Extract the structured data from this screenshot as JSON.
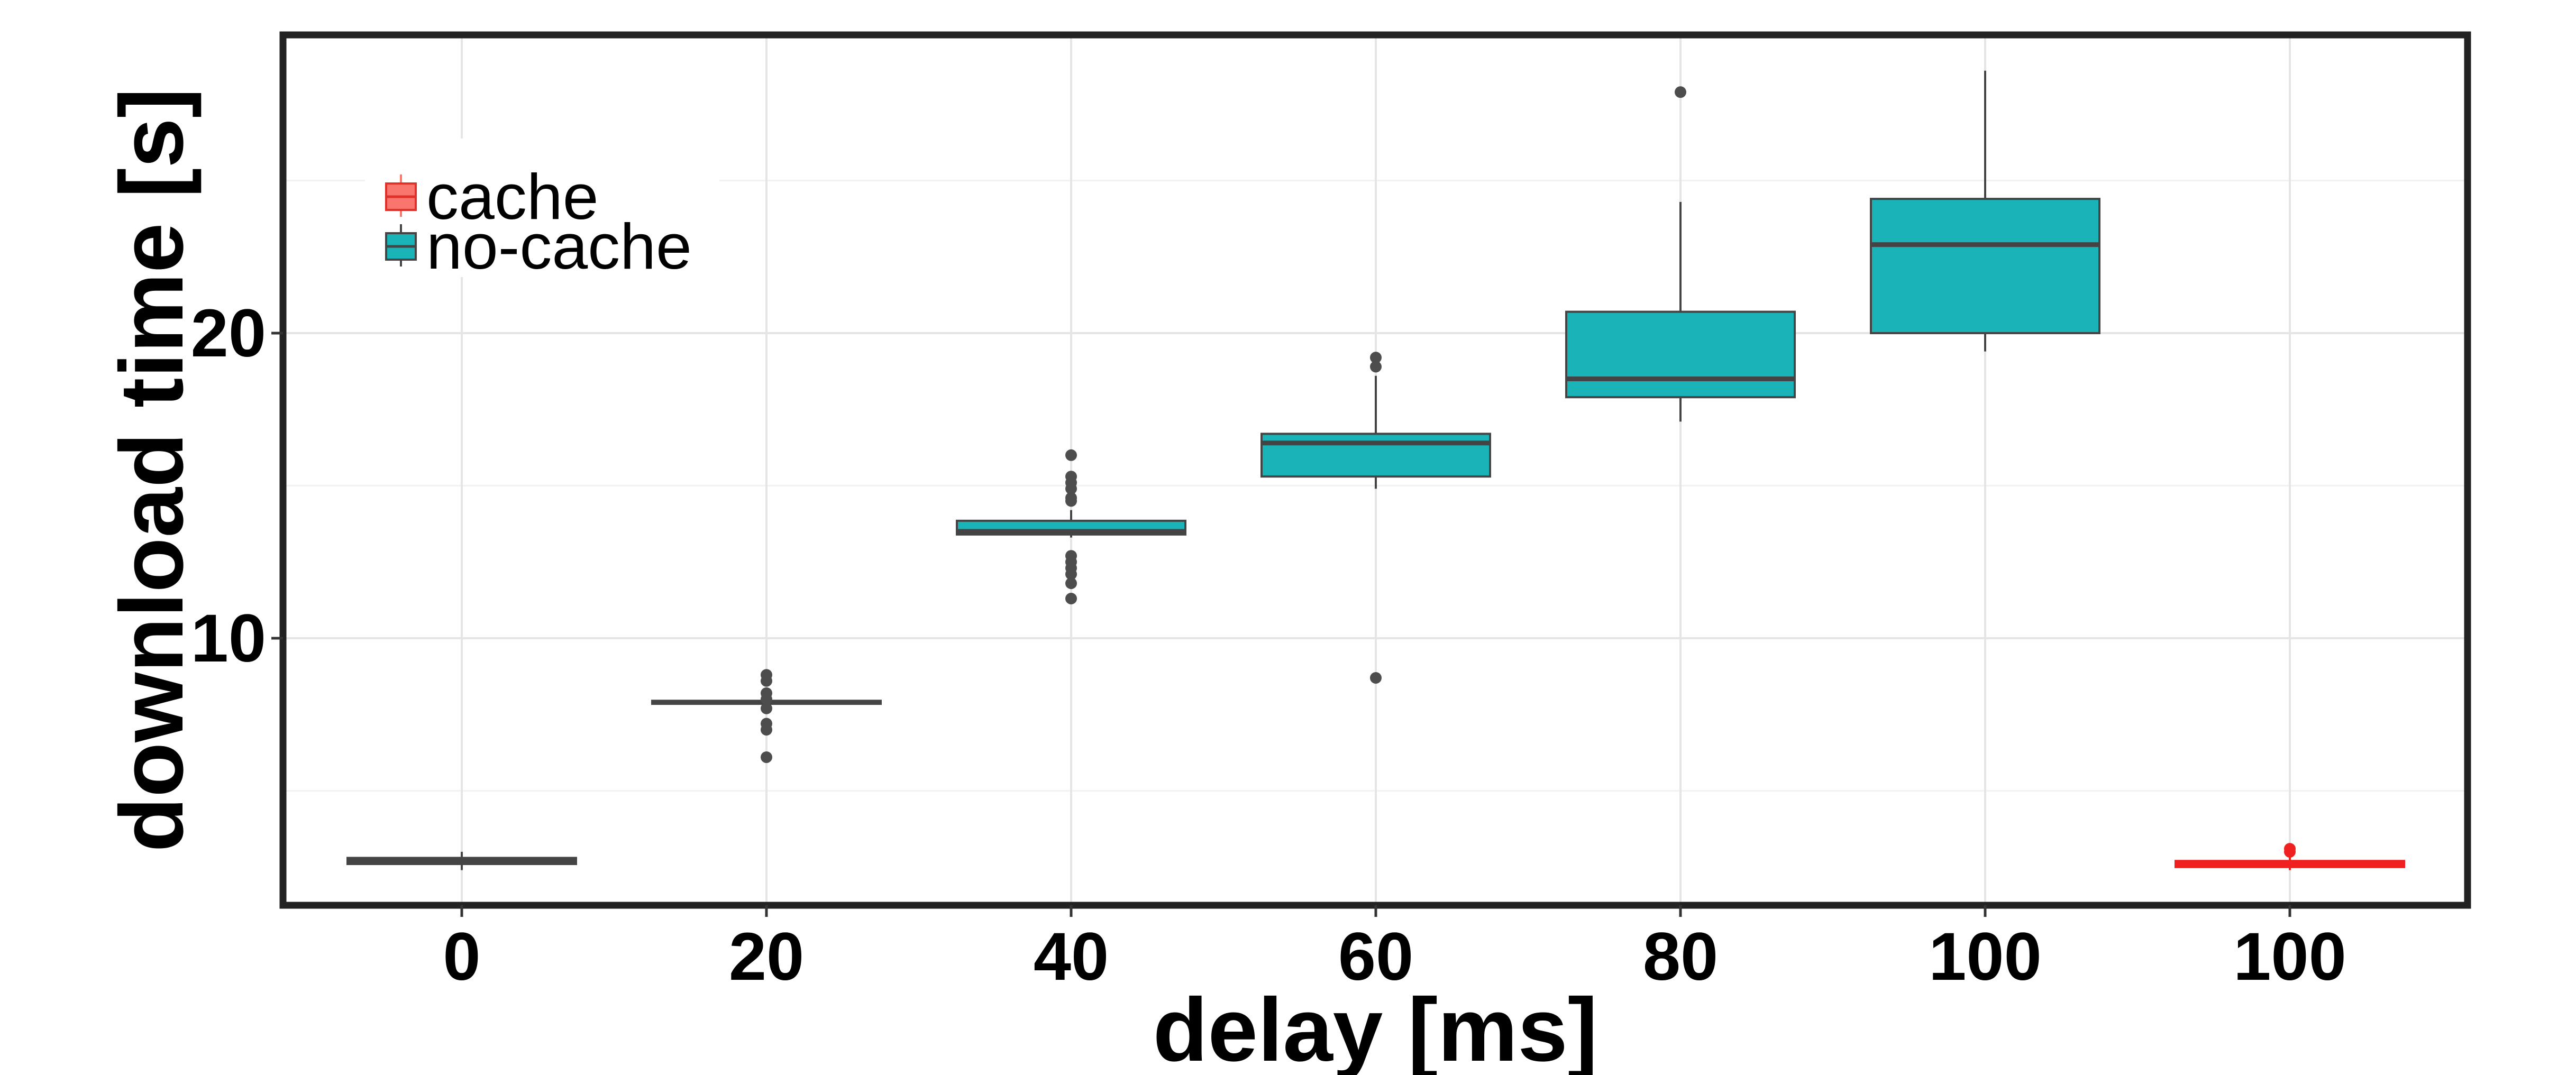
{
  "chart_data": {
    "type": "box",
    "xlabel": "delay [ms]",
    "ylabel": "download time [s]",
    "categories": [
      "0",
      "20",
      "40",
      "60",
      "80",
      "100",
      "100"
    ],
    "ylim": [
      1,
      30
    ],
    "yticks": [
      10,
      20
    ],
    "grid": true,
    "legend": {
      "placement": "top-left",
      "entries": [
        {
          "name": "cache",
          "color": "#F8766D"
        },
        {
          "name": "no-cache",
          "color": "#1AB3B8"
        }
      ]
    },
    "boxes": [
      {
        "category": "0",
        "group": "no-cache",
        "min": 2.4,
        "q1": 2.6,
        "median": 2.7,
        "q3": 2.8,
        "max": 3.0,
        "outliers": []
      },
      {
        "category": "20",
        "group": "no-cache",
        "min": 7.8,
        "q1": 7.85,
        "median": 7.9,
        "q3": 7.95,
        "max": 8.0,
        "outliers": [
          6.1,
          7.0,
          7.2,
          7.7,
          8.0,
          8.2,
          8.6,
          8.8
        ]
      },
      {
        "category": "40",
        "group": "no-cache",
        "min": 13.3,
        "q1": 13.4,
        "median": 13.5,
        "q3": 13.85,
        "max": 14.2,
        "outliers": [
          11.3,
          11.8,
          12.1,
          12.3,
          12.5,
          12.7,
          14.5,
          14.6,
          14.9,
          15.1,
          15.3,
          16.0
        ]
      },
      {
        "category": "60",
        "group": "no-cache",
        "min": 14.9,
        "q1": 15.3,
        "median": 16.4,
        "q3": 16.7,
        "max": 18.6,
        "outliers": [
          8.7,
          18.9,
          19.2
        ]
      },
      {
        "category": "80",
        "group": "no-cache",
        "min": 17.1,
        "q1": 17.9,
        "median": 18.5,
        "q3": 20.7,
        "max": 24.3,
        "outliers": [
          27.9
        ]
      },
      {
        "category": "100",
        "group": "no-cache",
        "min": 19.4,
        "q1": 20.0,
        "median": 22.9,
        "q3": 24.4,
        "max": 28.6,
        "outliers": []
      },
      {
        "category": "100",
        "group": "cache",
        "min": 2.4,
        "q1": 2.5,
        "median": 2.6,
        "q3": 2.7,
        "max": 2.85,
        "outliers": [
          3.0,
          3.1
        ]
      }
    ]
  }
}
